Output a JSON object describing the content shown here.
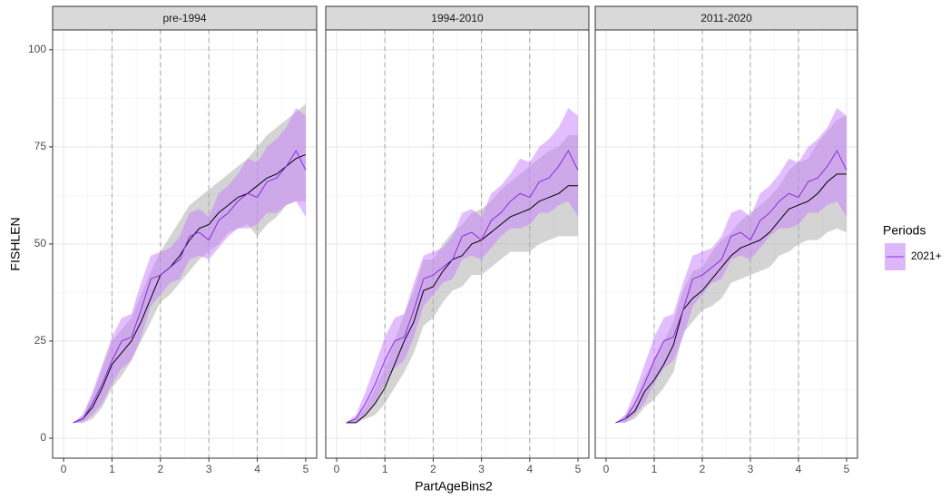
{
  "chart_data": {
    "type": "line",
    "x_label": "PartAgeBins2",
    "y_label": "FISHLEN",
    "legend_title": "Periods",
    "xlim": [
      -0.226,
      5.226
    ],
    "ylim": [
      -5.14,
      105.1
    ],
    "xticks": [
      0,
      1,
      2,
      3,
      4,
      5
    ],
    "yticks": [
      0,
      25,
      50,
      75,
      100
    ],
    "grid": true,
    "vlines": [
      1,
      2,
      3,
      4
    ],
    "legend_position": "right",
    "x": [
      0.2,
      0.4,
      0.6,
      0.8,
      1.0,
      1.2,
      1.4,
      1.6,
      1.8,
      2.0,
      2.2,
      2.4,
      2.6,
      2.8,
      3.0,
      3.2,
      3.4,
      3.6,
      3.8,
      4.0,
      4.2,
      4.4,
      4.6,
      4.8,
      5.0
    ],
    "facets": [
      {
        "title": "pre-1994",
        "series": [
          {
            "color": "#000000",
            "band_color": "#a9a9a9",
            "values": [
              4,
              5,
              8,
              13,
              19,
              22,
              25,
              30,
              36,
              42,
              44,
              47,
              51,
              54,
              55,
              58,
              60,
              62,
              63,
              65,
              67,
              68,
              70,
              72,
              73
            ],
            "lower": [
              4,
              4,
              5,
              8,
              13,
              16,
              20,
              25,
              30,
              35,
              37,
              40,
              43,
              46,
              48,
              50,
              53,
              54,
              55,
              52,
              55,
              57,
              60,
              61,
              61
            ],
            "upper": [
              4,
              6,
              11,
              18,
              25,
              28,
              31,
              37,
              43,
              48,
              52,
              56,
              60,
              62,
              64,
              66,
              68,
              70,
              72,
              75,
              78,
              80,
              82,
              84,
              86
            ]
          },
          {
            "name": "2021+",
            "color": "#8a2be2",
            "band_color": "#c77dff",
            "values": [
              4,
              5,
              9,
              14,
              20,
              25,
              26,
              33,
              41,
              42,
              44,
              46,
              52,
              53,
              51,
              56,
              58,
              61,
              63,
              62,
              66,
              67,
              70,
              74,
              69
            ],
            "lower": [
              4,
              4,
              6,
              9,
              14,
              18,
              20,
              26,
              34,
              37,
              40,
              41,
              46,
              47,
              46,
              49,
              52,
              54,
              54,
              55,
              58,
              58,
              60,
              61,
              57
            ],
            "upper": [
              4,
              6,
              12,
              19,
              26,
              31,
              32,
              40,
              47,
              48,
              49,
              52,
              58,
              59,
              57,
              63,
              65,
              68,
              72,
              71,
              75,
              77,
              80,
              85,
              83
            ]
          }
        ]
      },
      {
        "title": "1994-2010",
        "series": [
          {
            "color": "#000000",
            "band_color": "#a9a9a9",
            "values": [
              4,
              4,
              6,
              9,
              13,
              19,
              25,
              30,
              38,
              39,
              43,
              46,
              47,
              50,
              51,
              53,
              55,
              57,
              58,
              59,
              61,
              62,
              63,
              65,
              65
            ],
            "lower": [
              4,
              4,
              5,
              6,
              9,
              13,
              17,
              22,
              29,
              31,
              35,
              38,
              39,
              42,
              42,
              44,
              46,
              48,
              48,
              48,
              50,
              51,
              52,
              52,
              52
            ],
            "upper": [
              4,
              5,
              8,
              13,
              18,
              25,
              32,
              38,
              46,
              46,
              50,
              53,
              55,
              58,
              59,
              61,
              64,
              66,
              68,
              70,
              72,
              74,
              75,
              78,
              78
            ]
          },
          {
            "name": "2021+",
            "color": "#8a2be2",
            "band_color": "#c77dff",
            "values": [
              4,
              5,
              9,
              14,
              20,
              25,
              26,
              33,
              41,
              42,
              44,
              46,
              52,
              53,
              51,
              56,
              58,
              61,
              63,
              62,
              66,
              67,
              70,
              74,
              69
            ],
            "lower": [
              4,
              4,
              6,
              9,
              14,
              18,
              20,
              26,
              34,
              37,
              40,
              41,
              46,
              47,
              46,
              49,
              52,
              54,
              54,
              55,
              58,
              58,
              60,
              61,
              57
            ],
            "upper": [
              4,
              6,
              12,
              19,
              26,
              31,
              32,
              40,
              47,
              48,
              49,
              52,
              58,
              59,
              57,
              63,
              65,
              68,
              72,
              71,
              75,
              77,
              80,
              85,
              83
            ]
          }
        ]
      },
      {
        "title": "2011-2020",
        "series": [
          {
            "color": "#000000",
            "band_color": "#a9a9a9",
            "values": [
              4,
              5,
              7,
              12,
              15,
              19,
              24,
              33,
              36,
              38,
              41,
              44,
              47,
              49,
              50,
              51,
              53,
              56,
              59,
              60,
              61,
              63,
              66,
              68,
              68
            ],
            "lower": [
              4,
              4,
              5,
              8,
              10,
              13,
              17,
              27,
              30,
              33,
              34,
              36,
              40,
              41,
              42,
              43,
              44,
              47,
              48,
              50,
              51,
              51,
              53,
              54,
              53
            ],
            "upper": [
              4,
              6,
              9,
              16,
              20,
              25,
              30,
              38,
              43,
              44,
              48,
              51,
              53,
              56,
              58,
              60,
              62,
              65,
              69,
              71,
              72,
              76,
              79,
              82,
              83
            ]
          },
          {
            "name": "2021+",
            "color": "#8a2be2",
            "band_color": "#c77dff",
            "values": [
              4,
              5,
              9,
              14,
              20,
              25,
              26,
              33,
              41,
              42,
              44,
              46,
              52,
              53,
              51,
              56,
              58,
              61,
              63,
              62,
              66,
              67,
              70,
              74,
              69
            ],
            "lower": [
              4,
              4,
              6,
              9,
              14,
              18,
              20,
              26,
              34,
              37,
              40,
              41,
              46,
              47,
              46,
              49,
              52,
              54,
              54,
              55,
              58,
              58,
              60,
              61,
              57
            ],
            "upper": [
              4,
              6,
              12,
              19,
              26,
              31,
              32,
              40,
              47,
              48,
              49,
              52,
              58,
              59,
              57,
              63,
              65,
              68,
              72,
              71,
              75,
              77,
              80,
              85,
              83
            ]
          }
        ]
      }
    ]
  }
}
